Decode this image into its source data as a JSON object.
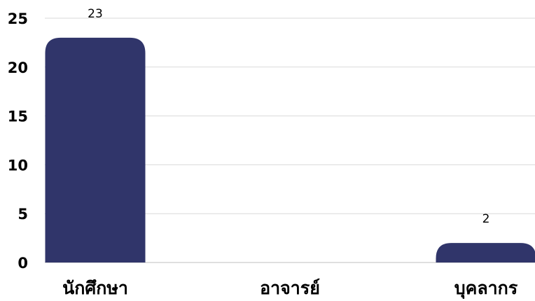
{
  "chart_data": {
    "type": "bar",
    "categories": [
      "นักศึกษา",
      "อาจารย์",
      "บุคลากร"
    ],
    "values": [
      23,
      0,
      2
    ],
    "data_labels": [
      "23",
      "",
      "2"
    ],
    "title": "",
    "xlabel": "",
    "ylabel": "",
    "ylim": [
      0,
      25
    ],
    "yticks": [
      "0",
      "5",
      "10",
      "15",
      "20",
      "25"
    ],
    "grid": true,
    "legend": "none",
    "bar_color": "#30356a"
  }
}
